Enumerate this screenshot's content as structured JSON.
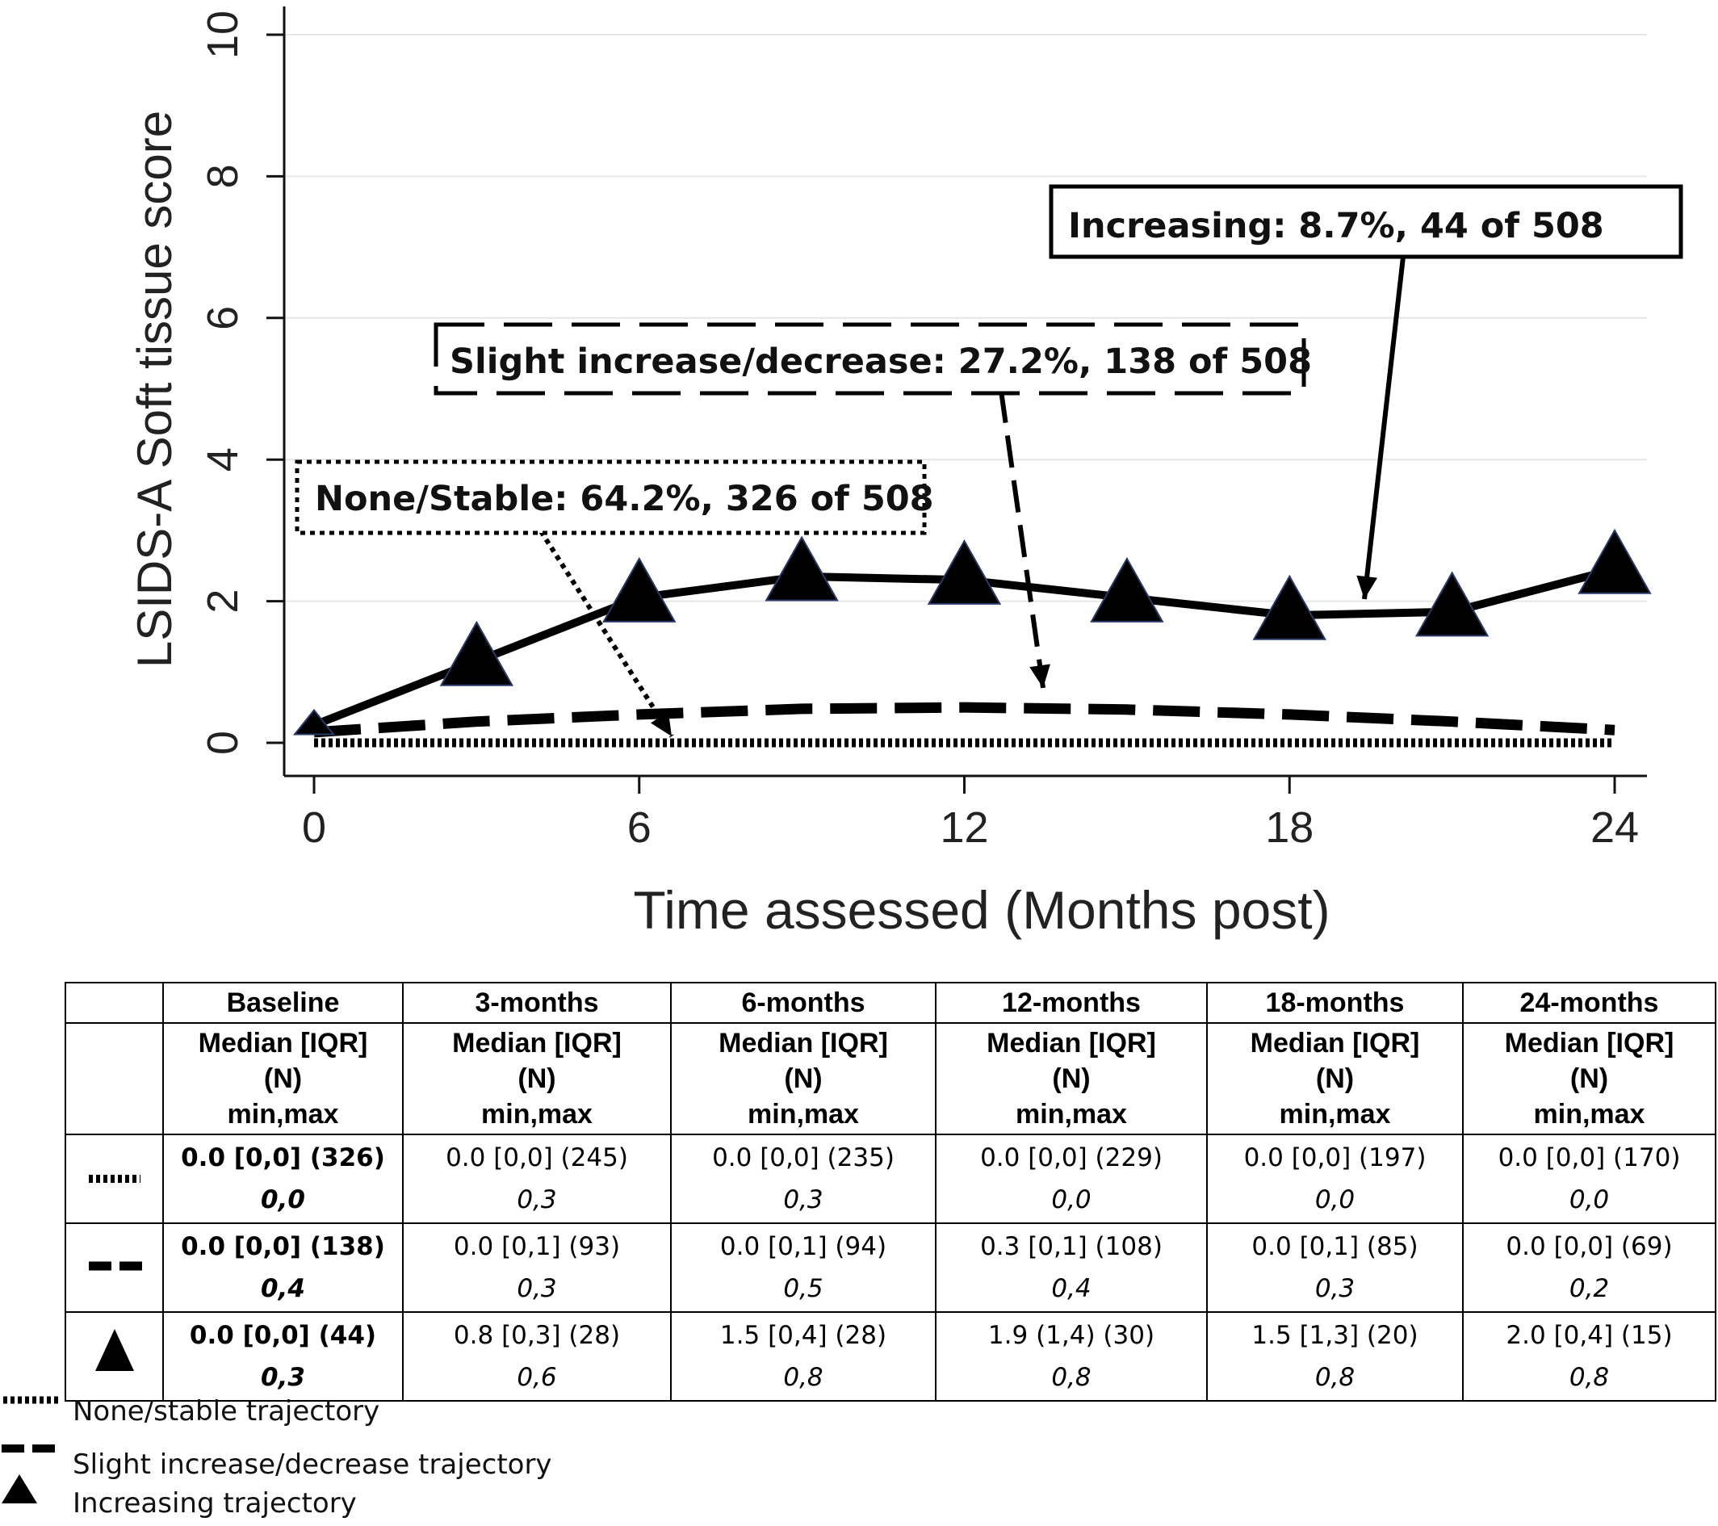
{
  "chart_data": {
    "type": "line",
    "xlabel": "Time assessed (Months post)",
    "ylabel": "LSIDS-A Soft  tissue score",
    "xlim": [
      0,
      24
    ],
    "ylim": [
      0,
      10
    ],
    "xticks": [
      "0",
      "6",
      "12",
      "18",
      "24"
    ],
    "yticks": [
      "0",
      "2",
      "4",
      "6",
      "8",
      "10"
    ],
    "grid": "horizontal",
    "series": [
      {
        "style": "dotted",
        "x": [
          0,
          3,
          6,
          9,
          12,
          15,
          18,
          21,
          24
        ],
        "values": [
          0.0,
          0.0,
          0.0,
          0.0,
          0.0,
          0.0,
          0.0,
          0.0,
          0.0
        ]
      },
      {
        "style": "dashed",
        "x": [
          0,
          3,
          6,
          9,
          12,
          15,
          18,
          21,
          24
        ],
        "values": [
          0.15,
          0.3,
          0.4,
          0.48,
          0.5,
          0.47,
          0.4,
          0.3,
          0.18
        ]
      },
      {
        "style": "solid-triangle",
        "x": [
          0,
          3,
          6,
          9,
          12,
          15,
          18,
          21,
          24
        ],
        "values": [
          0.25,
          1.15,
          2.05,
          2.35,
          2.3,
          2.05,
          1.8,
          1.85,
          2.45
        ]
      }
    ],
    "annotations": [
      {
        "id": "increasing",
        "text": "Increasing: 8.7%, 44 of 508",
        "style": "solid"
      },
      {
        "id": "slight",
        "text": "Slight increase/decrease: 27.2%, 138 of 508",
        "style": "dashed"
      },
      {
        "id": "stable",
        "text": "None/Stable: 64.2%, 326 of 508",
        "style": "dotted"
      }
    ]
  },
  "table": {
    "header_top": [
      "",
      "Baseline",
      "3-months",
      "6-months",
      "12-months",
      "18-months",
      "24-months"
    ],
    "header_sub": {
      "line1": "Median [IQR]",
      "line2": "(N)",
      "line3": "min,max"
    },
    "rows": [
      {
        "marker": "dotted",
        "cells": [
          {
            "main": "0.0 [0,0] (326)",
            "range": "0,0"
          },
          {
            "main": "0.0 [0,0] (245)",
            "range": "0,3"
          },
          {
            "main": "0.0 [0,0] (235)",
            "range": "0,3"
          },
          {
            "main": "0.0 [0,0] (229)",
            "range": "0,0"
          },
          {
            "main": "0.0 [0,0] (197)",
            "range": "0,0"
          },
          {
            "main": "0.0 [0,0] (170)",
            "range": "0,0"
          }
        ]
      },
      {
        "marker": "dashed",
        "cells": [
          {
            "main": "0.0 [0,0] (138)",
            "range": "0,4"
          },
          {
            "main": "0.0 [0,1] (93)",
            "range": "0,3"
          },
          {
            "main": "0.0 [0,1] (94)",
            "range": "0,5"
          },
          {
            "main": "0.3 [0,1] (108)",
            "range": "0,4"
          },
          {
            "main": "0.0 [0,1] (85)",
            "range": "0,3"
          },
          {
            "main": "0.0 [0,0] (69)",
            "range": "0,2"
          }
        ]
      },
      {
        "marker": "triangle",
        "cells": [
          {
            "main": "0.0 [0,0] (44)",
            "range": "0,3"
          },
          {
            "main": "0.8 [0,3] (28)",
            "range": "0,6"
          },
          {
            "main": "1.5 [0,4] (28)",
            "range": "0,8"
          },
          {
            "main": "1.9 (1,4) (30)",
            "range": "0,8"
          },
          {
            "main": "1.5 [1,3] (20)",
            "range": "0,8"
          },
          {
            "main": "2.0 [0,4] (15)",
            "range": "0,8"
          }
        ]
      }
    ]
  },
  "legend": [
    {
      "marker": "dotted",
      "label": "None/stable trajectory"
    },
    {
      "marker": "dashed",
      "label": "Slight increase/decrease trajectory"
    },
    {
      "marker": "triangle",
      "label": "Increasing trajectory"
    }
  ]
}
